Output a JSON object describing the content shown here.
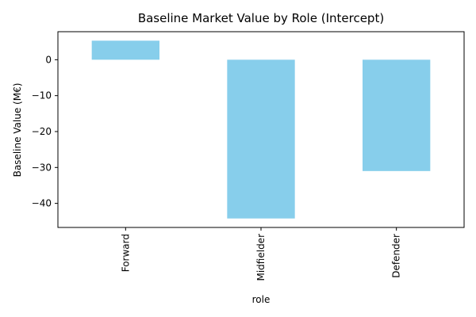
{
  "chart_data": {
    "type": "bar",
    "title": "Baseline Market Value by Role (Intercept)",
    "xlabel": "role",
    "ylabel": "Baseline Value (M€)",
    "categories": [
      "Forward",
      "Midfielder",
      "Defender"
    ],
    "values": [
      5.3,
      -44.2,
      -31.0
    ],
    "ylim": [
      -46.7,
      7.8
    ],
    "yticks": [
      0,
      -10,
      -20,
      -30,
      -40
    ],
    "ytick_labels": [
      "0",
      "−10",
      "−20",
      "−30",
      "−40"
    ],
    "bar_color": "#87ceeb",
    "grid": false,
    "legend": false
  }
}
